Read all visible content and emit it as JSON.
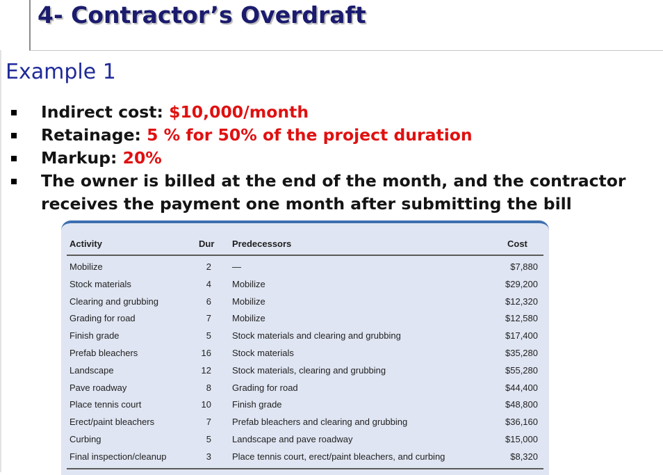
{
  "title": "4- Contractor’s Overdraft",
  "subtitle": "Example 1",
  "bullets": [
    {
      "label": "Indirect cost: ",
      "value": "$10,000/month"
    },
    {
      "label": "Retainage: ",
      "value": "5 % for 50% of the project duration"
    },
    {
      "label": "Markup: ",
      "value": "20%"
    },
    {
      "label": "The owner is billed at the end of the month, and the contractor",
      "value": ""
    },
    {
      "label": "receives the payment one month after submitting the bill",
      "value": ""
    }
  ],
  "table": {
    "headers": {
      "activity": "Activity",
      "dur": "Dur",
      "predecessors": "Predecessors",
      "cost": "Cost"
    },
    "rows": [
      {
        "activity": "Mobilize",
        "dur": "2",
        "predecessors": "—",
        "cost": "$7,880"
      },
      {
        "activity": "Stock materials",
        "dur": "4",
        "predecessors": "Mobilize",
        "cost": "$29,200"
      },
      {
        "activity": "Clearing and grubbing",
        "dur": "6",
        "predecessors": "Mobilize",
        "cost": "$12,320"
      },
      {
        "activity": "Grading for road",
        "dur": "7",
        "predecessors": "Mobilize",
        "cost": "$12,580"
      },
      {
        "activity": "Finish grade",
        "dur": "5",
        "predecessors": "Stock materials and clearing and grubbing",
        "cost": "$17,400"
      },
      {
        "activity": "Prefab bleachers",
        "dur": "16",
        "predecessors": "Stock materials",
        "cost": "$35,280"
      },
      {
        "activity": "Landscape",
        "dur": "12",
        "predecessors": "Stock materials, clearing and grubbing",
        "cost": "$55,280"
      },
      {
        "activity": "Pave roadway",
        "dur": "8",
        "predecessors": "Grading for road",
        "cost": "$44,400"
      },
      {
        "activity": "Place tennis court",
        "dur": "10",
        "predecessors": "Finish grade",
        "cost": "$48,800"
      },
      {
        "activity": "Erect/paint bleachers",
        "dur": "7",
        "predecessors": "Prefab bleachers and clearing and grubbing",
        "cost": "$36,160"
      },
      {
        "activity": "Curbing",
        "dur": "5",
        "predecessors": "Landscape and pave roadway",
        "cost": "$15,000"
      },
      {
        "activity": "Final inspection/cleanup",
        "dur": "3",
        "predecessors": "Place tennis court, erect/paint bleachers, and curbing",
        "cost": "$8,320"
      }
    ]
  },
  "colors": {
    "title": "#1b1b6e",
    "subtitle": "#1f2a99",
    "highlight": "#e01010",
    "table_bg": "#dfe5f2",
    "table_accent": "#3d6fb0"
  }
}
